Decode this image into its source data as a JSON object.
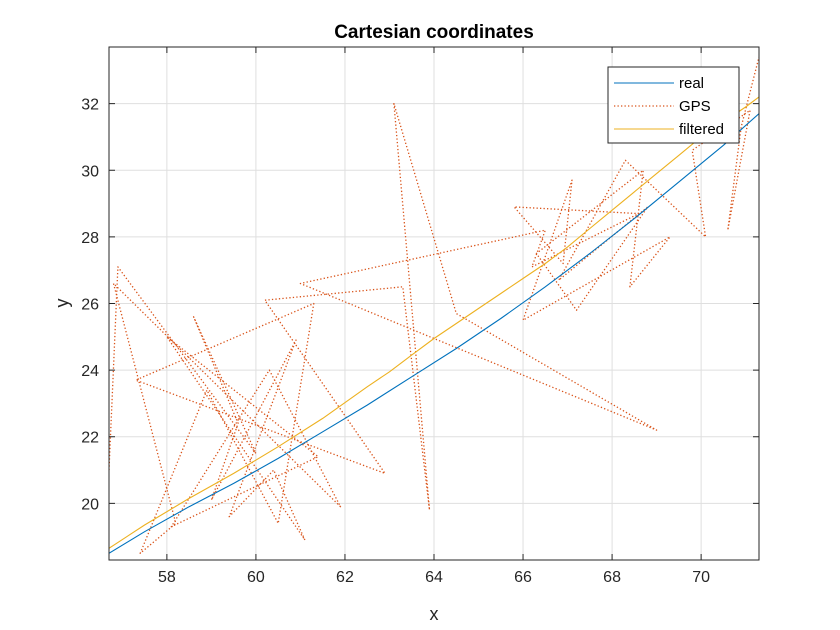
{
  "chart_data": {
    "type": "line",
    "title": "Cartesian coordinates",
    "xlabel": "x",
    "ylabel": "y",
    "xlim": [
      56.7,
      71.3
    ],
    "ylim": [
      18.3,
      33.7
    ],
    "xticks": [
      58,
      60,
      62,
      64,
      66,
      68,
      70
    ],
    "yticks": [
      20,
      22,
      24,
      26,
      28,
      30,
      32
    ],
    "grid": true,
    "legend_position": "top-right",
    "series": [
      {
        "name": "real",
        "color": "#0072BD",
        "style": "solid",
        "x": [
          56.7,
          57.5,
          58.5,
          59.5,
          60.5,
          61.5,
          62.5,
          63.5,
          64.5,
          65.5,
          66.5,
          67.5,
          68.5,
          69.5,
          70.5,
          71.3
        ],
        "y": [
          18.5,
          19.15,
          19.9,
          20.6,
          21.35,
          22.15,
          22.95,
          23.8,
          24.65,
          25.55,
          26.5,
          27.5,
          28.55,
          29.65,
          30.75,
          31.7
        ]
      },
      {
        "name": "GPS",
        "color": "#D95319",
        "style": "dotted",
        "x": [
          56.7,
          56.9,
          60.0,
          58.6,
          59.6,
          59.0,
          60.9,
          59.4,
          60.4,
          61.1,
          58.0,
          61.4,
          58.1,
          60.3,
          61.9,
          56.8,
          58.2,
          57.4,
          58.9,
          60.5,
          61.3,
          57.3,
          62.9,
          60.2,
          63.3,
          63.9,
          63.1,
          64.5,
          69.0,
          61.0,
          66.5,
          66.2,
          68.6,
          65.8,
          66.9,
          67.1,
          66.0,
          69.3,
          68.4,
          68.7,
          66.3,
          67.2,
          68.8,
          66.8,
          68.3,
          70.1,
          69.8,
          71.1,
          70.6,
          70.9,
          71.3
        ],
        "y": [
          21.0,
          27.1,
          21.5,
          25.6,
          22.4,
          20.1,
          24.9,
          19.6,
          21.0,
          18.9,
          25.0,
          21.4,
          19.3,
          24.0,
          19.9,
          26.6,
          19.4,
          18.5,
          23.4,
          19.4,
          26.0,
          23.7,
          20.9,
          26.1,
          26.5,
          19.8,
          32.0,
          25.7,
          22.2,
          26.6,
          28.2,
          27.1,
          28.7,
          28.9,
          27.2,
          29.7,
          25.5,
          28.0,
          26.5,
          30.0,
          27.5,
          25.8,
          28.9,
          26.7,
          30.3,
          28.0,
          30.6,
          31.8,
          28.2,
          31.3,
          33.4
        ]
      },
      {
        "name": "filtered",
        "color": "#EDB120",
        "style": "solid",
        "x": [
          56.7,
          57.5,
          58.5,
          59.5,
          60.5,
          61.5,
          62.5,
          63.0,
          63.5,
          64.0,
          64.5,
          65.0,
          65.5,
          66.0,
          66.5,
          67.0,
          67.5,
          68.0,
          68.5,
          69.0,
          69.5,
          70.0,
          70.5,
          71.0,
          71.3
        ],
        "y": [
          18.65,
          19.35,
          20.15,
          20.9,
          21.7,
          22.55,
          23.5,
          23.95,
          24.45,
          24.95,
          25.4,
          25.85,
          26.3,
          26.75,
          27.2,
          27.7,
          28.25,
          28.8,
          29.35,
          29.9,
          30.45,
          31.0,
          31.45,
          31.9,
          32.2
        ]
      }
    ]
  }
}
